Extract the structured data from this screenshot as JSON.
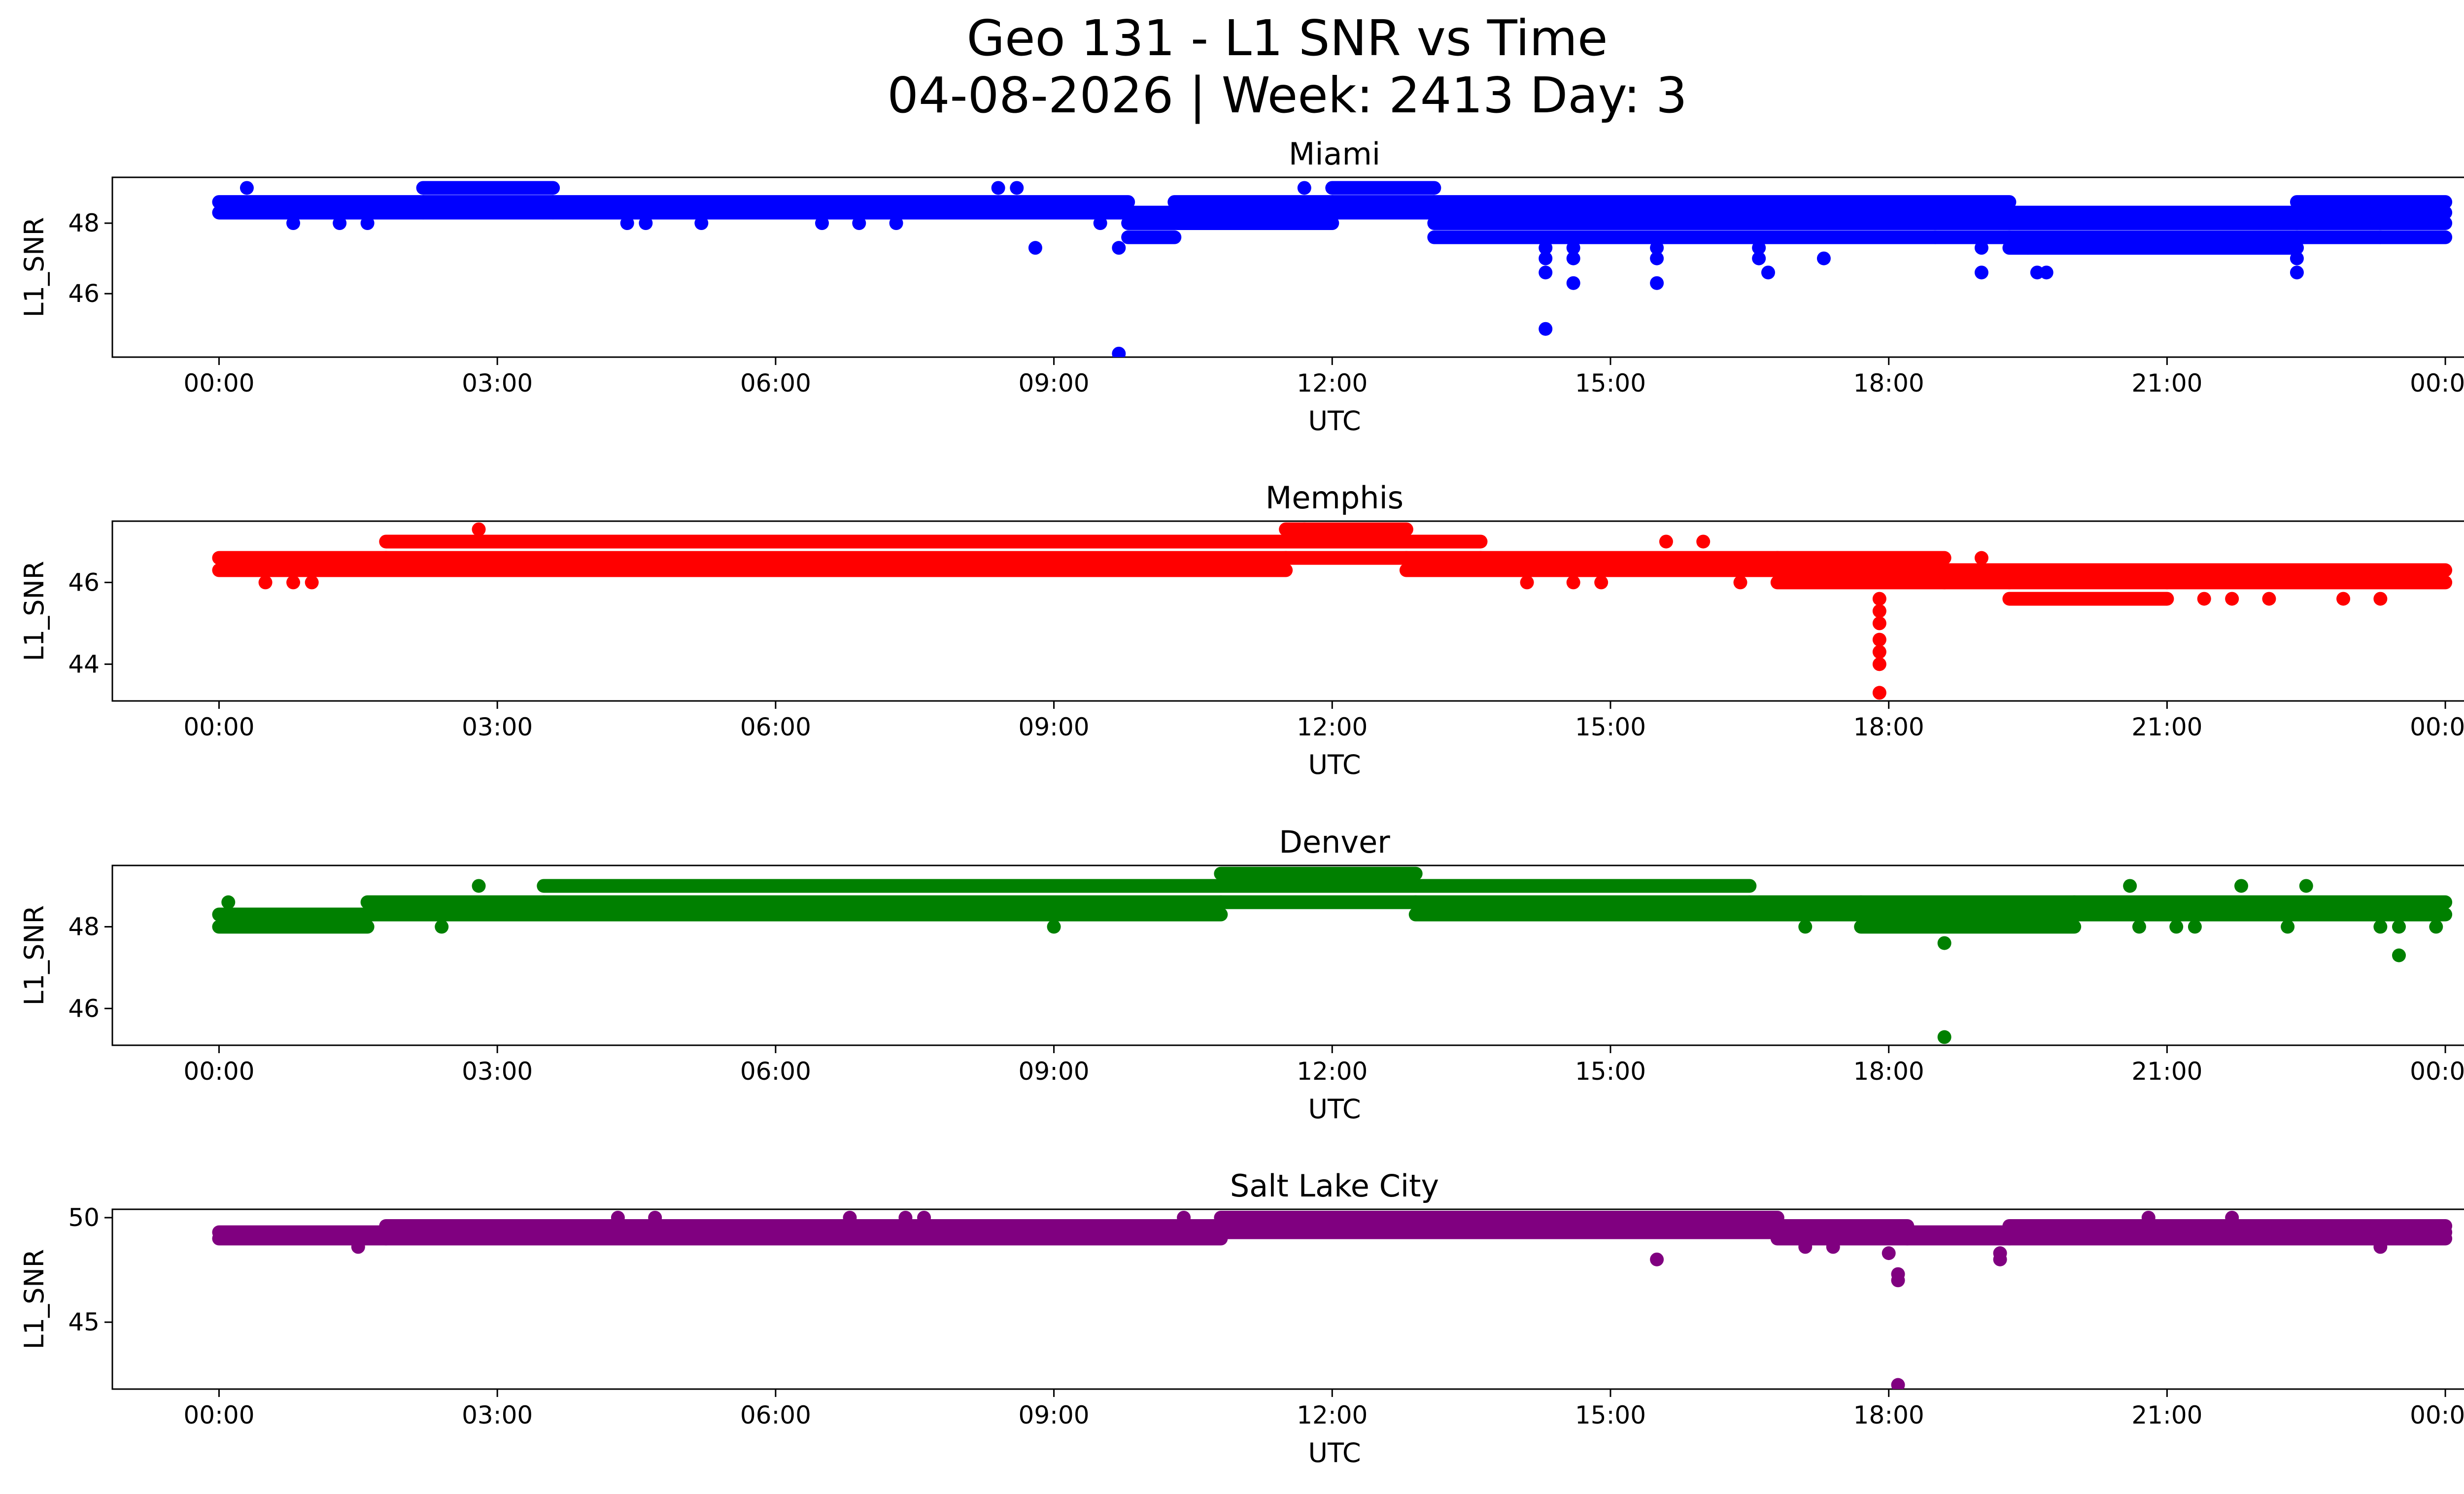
{
  "title_line1": "Geo 131 - L1 SNR vs Time",
  "title_line2": "04-08-2026 | Week: 2413 Day: 3",
  "chart_data": [
    {
      "type": "scatter",
      "title": "Miami",
      "xlabel": "UTC",
      "ylabel": "L1_SNR",
      "color": "#0000ff",
      "x_unit": "hours UTC",
      "xlim": [
        -1.15,
        25.2
      ],
      "ylim": [
        44.2,
        49.3
      ],
      "xticks": [
        0,
        3,
        6,
        9,
        12,
        15,
        18,
        21,
        24
      ],
      "xticklabels": [
        "00:00",
        "03:00",
        "06:00",
        "09:00",
        "12:00",
        "15:00",
        "18:00",
        "21:00",
        "00:00"
      ],
      "yticks": [
        46,
        48
      ],
      "yticklabels": [
        "46",
        "48"
      ],
      "bands": [
        {
          "x0": 0,
          "x1": 2.2,
          "levels": [
            48.3,
            48.6
          ]
        },
        {
          "x0": 2.2,
          "x1": 3.6,
          "levels": [
            48.3,
            48.6,
            49.0
          ]
        },
        {
          "x0": 3.6,
          "x1": 9.8,
          "levels": [
            48.3,
            48.6
          ]
        },
        {
          "x0": 9.8,
          "x1": 10.3,
          "levels": [
            47.6,
            48.0,
            48.3
          ]
        },
        {
          "x0": 10.3,
          "x1": 12.0,
          "levels": [
            48.0,
            48.3,
            48.6
          ]
        },
        {
          "x0": 12.0,
          "x1": 13.1,
          "levels": [
            48.3,
            48.6,
            49.0
          ]
        },
        {
          "x0": 13.1,
          "x1": 19.3,
          "levels": [
            47.6,
            48.0,
            48.3,
            48.6
          ]
        },
        {
          "x0": 19.3,
          "x1": 22.4,
          "levels": [
            47.3,
            47.6,
            48.0,
            48.3
          ]
        },
        {
          "x0": 22.4,
          "x1": 24.0,
          "levels": [
            47.6,
            48.0,
            48.3,
            48.6
          ]
        }
      ],
      "points": [
        [
          0.3,
          49.0
        ],
        [
          0.8,
          48.0
        ],
        [
          1.3,
          48.0
        ],
        [
          1.6,
          48.0
        ],
        [
          4.4,
          48.0
        ],
        [
          4.6,
          48.0
        ],
        [
          5.2,
          48.0
        ],
        [
          6.5,
          48.0
        ],
        [
          6.9,
          48.0
        ],
        [
          7.3,
          48.0
        ],
        [
          8.4,
          49.0
        ],
        [
          8.6,
          49.0
        ],
        [
          8.8,
          47.3
        ],
        [
          9.5,
          48.0
        ],
        [
          9.7,
          47.3
        ],
        [
          9.7,
          44.3
        ],
        [
          11.7,
          49.0
        ],
        [
          14.3,
          47.3
        ],
        [
          14.3,
          47.0
        ],
        [
          14.3,
          46.6
        ],
        [
          14.3,
          45.0
        ],
        [
          14.6,
          47.3
        ],
        [
          14.6,
          47.0
        ],
        [
          14.6,
          46.3
        ],
        [
          15.5,
          47.3
        ],
        [
          15.5,
          47.0
        ],
        [
          15.5,
          46.3
        ],
        [
          16.6,
          47.3
        ],
        [
          16.6,
          47.0
        ],
        [
          16.7,
          46.6
        ],
        [
          17.3,
          47.0
        ],
        [
          18.5,
          47.6
        ],
        [
          19.0,
          47.3
        ],
        [
          19.0,
          46.6
        ],
        [
          19.5,
          47.3
        ],
        [
          19.6,
          46.6
        ],
        [
          19.7,
          46.6
        ],
        [
          22.4,
          47.3
        ],
        [
          22.4,
          47.0
        ],
        [
          22.4,
          46.6
        ],
        [
          23.3,
          47.6
        ]
      ]
    },
    {
      "type": "scatter",
      "title": "Memphis",
      "xlabel": "UTC",
      "ylabel": "L1_SNR",
      "color": "#ff0000",
      "x_unit": "hours UTC",
      "xlim": [
        -1.15,
        25.2
      ],
      "ylim": [
        43.1,
        47.5
      ],
      "xticks": [
        0,
        3,
        6,
        9,
        12,
        15,
        18,
        21,
        24
      ],
      "xticklabels": [
        "00:00",
        "03:00",
        "06:00",
        "09:00",
        "12:00",
        "15:00",
        "18:00",
        "21:00",
        "00:00"
      ],
      "yticks": [
        44,
        46
      ],
      "yticklabels": [
        "44",
        "46"
      ],
      "bands": [
        {
          "x0": 0,
          "x1": 1.8,
          "levels": [
            46.3,
            46.6
          ]
        },
        {
          "x0": 1.8,
          "x1": 11.5,
          "levels": [
            46.3,
            46.6,
            47.0
          ]
        },
        {
          "x0": 11.5,
          "x1": 12.8,
          "levels": [
            46.6,
            47.0,
            47.3
          ]
        },
        {
          "x0": 12.8,
          "x1": 13.6,
          "levels": [
            46.3,
            46.6,
            47.0
          ]
        },
        {
          "x0": 13.6,
          "x1": 16.8,
          "levels": [
            46.3,
            46.6
          ]
        },
        {
          "x0": 16.8,
          "x1": 18.6,
          "levels": [
            46.0,
            46.3,
            46.6
          ]
        },
        {
          "x0": 18.6,
          "x1": 19.3,
          "levels": [
            46.0,
            46.3
          ]
        },
        {
          "x0": 19.3,
          "x1": 21.0,
          "levels": [
            45.6,
            46.0,
            46.3
          ]
        },
        {
          "x0": 21.0,
          "x1": 24.0,
          "levels": [
            46.0,
            46.3
          ]
        }
      ],
      "points": [
        [
          0.5,
          46.0
        ],
        [
          0.8,
          46.0
        ],
        [
          1.0,
          46.0
        ],
        [
          2.8,
          47.3
        ],
        [
          9.3,
          46.3
        ],
        [
          11.7,
          47.3
        ],
        [
          14.1,
          46.0
        ],
        [
          14.6,
          46.0
        ],
        [
          14.9,
          46.0
        ],
        [
          15.6,
          47.0
        ],
        [
          16.0,
          47.0
        ],
        [
          16.4,
          46.0
        ],
        [
          17.9,
          45.6
        ],
        [
          17.9,
          45.3
        ],
        [
          17.9,
          45.0
        ],
        [
          17.9,
          44.6
        ],
        [
          17.9,
          44.3
        ],
        [
          17.9,
          44.0
        ],
        [
          17.9,
          43.3
        ],
        [
          19.0,
          46.6
        ],
        [
          21.4,
          45.6
        ],
        [
          21.7,
          45.6
        ],
        [
          22.1,
          45.6
        ],
        [
          22.9,
          45.6
        ],
        [
          23.3,
          45.6
        ]
      ]
    },
    {
      "type": "scatter",
      "title": "Denver",
      "xlabel": "UTC",
      "ylabel": "L1_SNR",
      "color": "#008000",
      "x_unit": "hours UTC",
      "xlim": [
        -1.15,
        25.2
      ],
      "ylim": [
        45.1,
        49.5
      ],
      "xticks": [
        0,
        3,
        6,
        9,
        12,
        15,
        18,
        21,
        24
      ],
      "xticklabels": [
        "00:00",
        "03:00",
        "06:00",
        "09:00",
        "12:00",
        "15:00",
        "18:00",
        "21:00",
        "00:00"
      ],
      "yticks": [
        46,
        48
      ],
      "yticklabels": [
        "46",
        "48"
      ],
      "bands": [
        {
          "x0": 0,
          "x1": 1.6,
          "levels": [
            48.0,
            48.3
          ]
        },
        {
          "x0": 1.6,
          "x1": 3.5,
          "levels": [
            48.3,
            48.6
          ]
        },
        {
          "x0": 3.5,
          "x1": 10.8,
          "levels": [
            48.3,
            48.6,
            49.0
          ]
        },
        {
          "x0": 10.8,
          "x1": 12.9,
          "levels": [
            48.6,
            49.0,
            49.3
          ]
        },
        {
          "x0": 12.9,
          "x1": 16.5,
          "levels": [
            48.3,
            48.6,
            49.0
          ]
        },
        {
          "x0": 16.5,
          "x1": 17.7,
          "levels": [
            48.3,
            48.6
          ]
        },
        {
          "x0": 17.7,
          "x1": 20.0,
          "levels": [
            48.0,
            48.3,
            48.6
          ]
        },
        {
          "x0": 20.0,
          "x1": 24.0,
          "levels": [
            48.3,
            48.6
          ]
        }
      ],
      "points": [
        [
          0.1,
          48.6
        ],
        [
          2.4,
          48.0
        ],
        [
          2.8,
          49.0
        ],
        [
          9.0,
          48.0
        ],
        [
          17.1,
          48.0
        ],
        [
          18.6,
          47.6
        ],
        [
          18.6,
          45.3
        ],
        [
          20.6,
          49.0
        ],
        [
          20.7,
          48.0
        ],
        [
          21.1,
          48.0
        ],
        [
          21.3,
          48.0
        ],
        [
          21.8,
          49.0
        ],
        [
          22.3,
          48.0
        ],
        [
          22.5,
          49.0
        ],
        [
          23.3,
          48.0
        ],
        [
          23.5,
          48.0
        ],
        [
          23.5,
          47.3
        ],
        [
          23.9,
          48.0
        ]
      ]
    },
    {
      "type": "scatter",
      "title": "Salt Lake City",
      "xlabel": "UTC",
      "ylabel": "L1_SNR",
      "color": "#800080",
      "x_unit": "hours UTC",
      "xlim": [
        -1.15,
        25.2
      ],
      "ylim": [
        41.8,
        50.4
      ],
      "xticks": [
        0,
        3,
        6,
        9,
        12,
        15,
        18,
        21,
        24
      ],
      "xticklabels": [
        "00:00",
        "03:00",
        "06:00",
        "09:00",
        "12:00",
        "15:00",
        "18:00",
        "21:00",
        "00:00"
      ],
      "yticks": [
        45,
        50
      ],
      "yticklabels": [
        "45",
        "50"
      ],
      "bands": [
        {
          "x0": 0,
          "x1": 1.8,
          "levels": [
            49.0,
            49.3
          ]
        },
        {
          "x0": 1.8,
          "x1": 10.8,
          "levels": [
            49.0,
            49.3,
            49.6
          ]
        },
        {
          "x0": 10.8,
          "x1": 16.8,
          "levels": [
            49.3,
            49.6,
            50.0
          ]
        },
        {
          "x0": 16.8,
          "x1": 18.2,
          "levels": [
            49.0,
            49.3,
            49.6
          ]
        },
        {
          "x0": 18.2,
          "x1": 19.3,
          "levels": [
            49.0,
            49.3
          ]
        },
        {
          "x0": 19.3,
          "x1": 24.0,
          "levels": [
            49.0,
            49.3,
            49.6
          ]
        }
      ],
      "points": [
        [
          1.5,
          48.6
        ],
        [
          4.3,
          50.0
        ],
        [
          4.7,
          50.0
        ],
        [
          6.8,
          50.0
        ],
        [
          7.4,
          50.0
        ],
        [
          7.6,
          50.0
        ],
        [
          10.4,
          50.0
        ],
        [
          15.5,
          48.0
        ],
        [
          17.1,
          48.6
        ],
        [
          17.4,
          48.6
        ],
        [
          18.0,
          48.3
        ],
        [
          18.1,
          47.3
        ],
        [
          18.1,
          47.0
        ],
        [
          18.1,
          42.0
        ],
        [
          19.2,
          48.3
        ],
        [
          19.2,
          48.0
        ],
        [
          20.8,
          50.0
        ],
        [
          21.7,
          50.0
        ],
        [
          23.3,
          48.6
        ]
      ]
    }
  ]
}
